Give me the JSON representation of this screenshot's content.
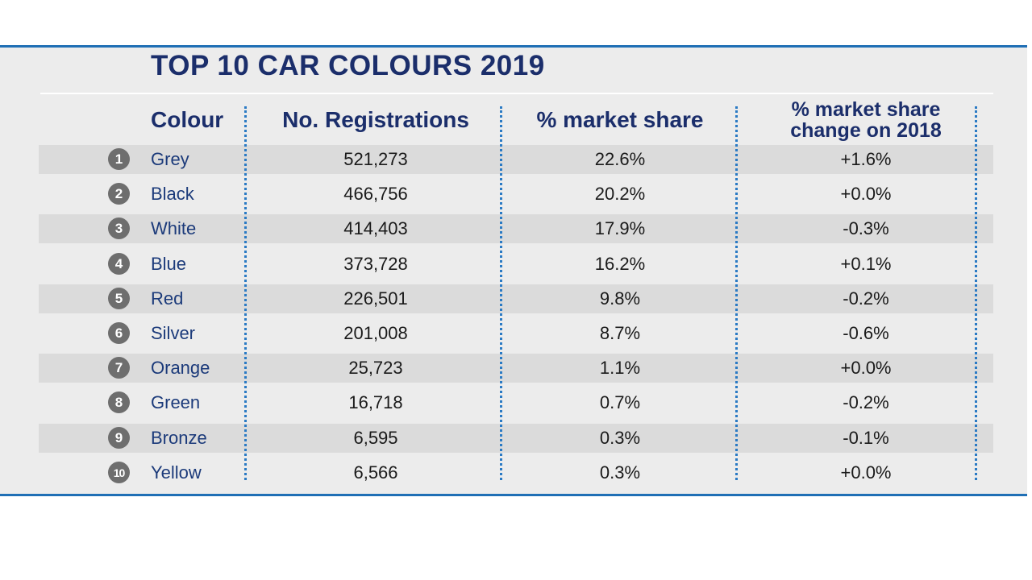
{
  "chart_data": {
    "type": "table",
    "title": "TOP 10 CAR COLOURS 2019",
    "columns": [
      "Colour",
      "No. Registrations",
      "% market share",
      "% market share change on 2018"
    ],
    "rows": [
      {
        "rank": "1",
        "colour": "Grey",
        "registrations": "521,273",
        "share": "22.6%",
        "change": "+1.6%"
      },
      {
        "rank": "2",
        "colour": "Black",
        "registrations": "466,756",
        "share": "20.2%",
        "change": "+0.0%"
      },
      {
        "rank": "3",
        "colour": "White",
        "registrations": "414,403",
        "share": "17.9%",
        "change": "-0.3%"
      },
      {
        "rank": "4",
        "colour": "Blue",
        "registrations": "373,728",
        "share": "16.2%",
        "change": "+0.1%"
      },
      {
        "rank": "5",
        "colour": "Red",
        "registrations": "226,501",
        "share": "9.8%",
        "change": "-0.2%"
      },
      {
        "rank": "6",
        "colour": "Silver",
        "registrations": "201,008",
        "share": "8.7%",
        "change": "-0.6%"
      },
      {
        "rank": "7",
        "colour": "Orange",
        "registrations": "25,723",
        "share": "1.1%",
        "change": "+0.0%"
      },
      {
        "rank": "8",
        "colour": "Green",
        "registrations": "16,718",
        "share": "0.7%",
        "change": "-0.2%"
      },
      {
        "rank": "9",
        "colour": "Bronze",
        "registrations": "6,595",
        "share": "0.3%",
        "change": "-0.1%"
      },
      {
        "rank": "10",
        "colour": "Yellow",
        "registrations": "6,566",
        "share": "0.3%",
        "change": "+0.0%"
      }
    ]
  },
  "header": {
    "col_colour": "Colour",
    "col_registrations": "No. Registrations",
    "col_share": "% market share",
    "col_change_line1": "% market share",
    "col_change_line2": "change on 2018"
  },
  "colors": {
    "accent": "#1f6fb5",
    "title": "#1b2e6b",
    "stripe": "#dbdbdb",
    "panel": "#ececec"
  }
}
